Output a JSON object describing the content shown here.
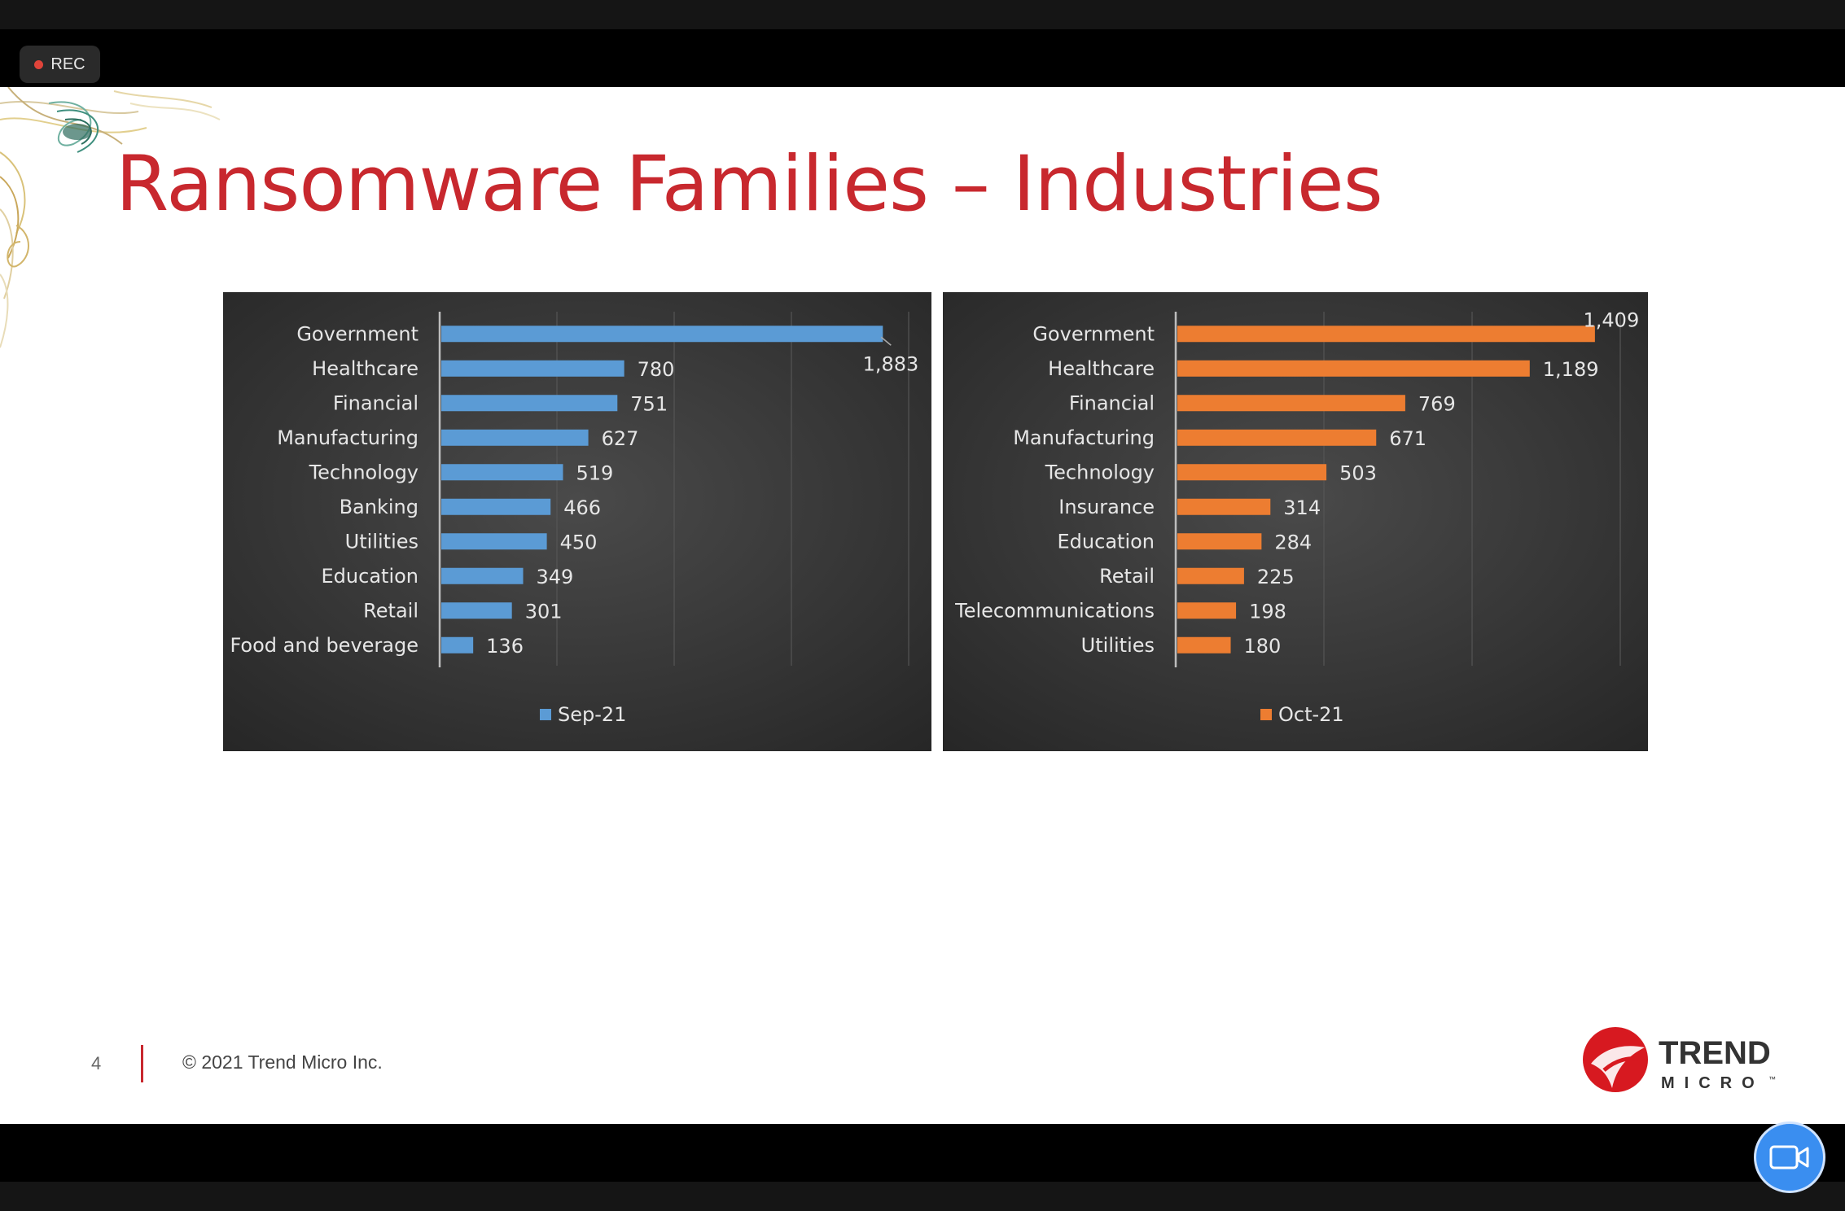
{
  "recording": {
    "label": "REC"
  },
  "slide": {
    "title": "Ransomware Families – Industries",
    "page_number": "4",
    "copyright": "© 2021 Trend Micro Inc.",
    "logo": {
      "word1": "TREND",
      "word2": "MICRO",
      "mark": "™"
    }
  },
  "colors": {
    "title": "#c8282e",
    "sep_bar": "#5b9bd5",
    "oct_bar": "#ed7d31",
    "panel_bg": "#3c3c3c"
  },
  "chart_data": [
    {
      "type": "bar",
      "orientation": "horizontal",
      "categories": [
        "Government",
        "Healthcare",
        "Financial",
        "Manufacturing",
        "Technology",
        "Banking",
        "Utilities",
        "Education",
        "Retail",
        "Food and beverage"
      ],
      "series": [
        {
          "name": "Sep-21",
          "values": [
            1883,
            780,
            751,
            627,
            519,
            466,
            450,
            349,
            301,
            136
          ]
        }
      ],
      "value_labels": [
        "1,883",
        "780",
        "751",
        "627",
        "519",
        "466",
        "450",
        "349",
        "301",
        "136"
      ],
      "xlim": [
        0,
        2000
      ],
      "grid": true,
      "legend": "bottom",
      "color": "#5b9bd5"
    },
    {
      "type": "bar",
      "orientation": "horizontal",
      "categories": [
        "Government",
        "Healthcare",
        "Financial",
        "Manufacturing",
        "Technology",
        "Insurance",
        "Education",
        "Retail",
        "Telecommunications",
        "Utilities"
      ],
      "series": [
        {
          "name": "Oct-21",
          "values": [
            1409,
            1189,
            769,
            671,
            503,
            314,
            284,
            225,
            198,
            180
          ]
        }
      ],
      "value_labels": [
        "1,409",
        "1,189",
        "769",
        "671",
        "503",
        "314",
        "284",
        "225",
        "198",
        "180"
      ],
      "xlim": [
        0,
        1500
      ],
      "grid": true,
      "legend": "bottom",
      "color": "#ed7d31"
    }
  ]
}
